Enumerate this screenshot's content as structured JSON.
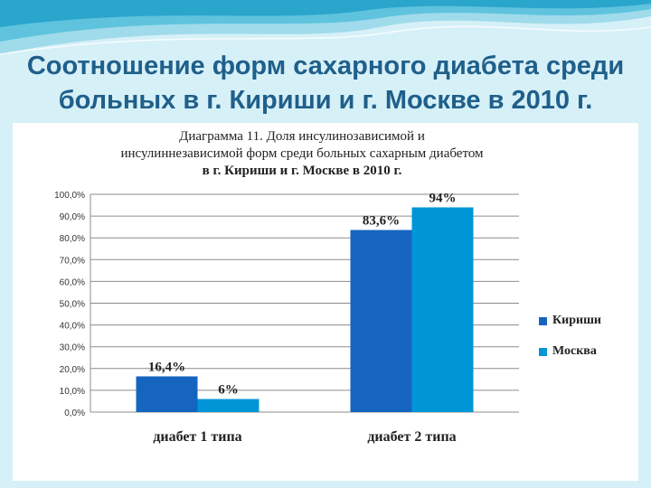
{
  "slide": {
    "title_line1": "Соотношение форм сахарного диабета среди",
    "title_line2": "больных в г. Кириши и г. Москве в 2010 г."
  },
  "colors": {
    "kirishi": "#1565c0",
    "moscow": "#0096d6",
    "title": "#1f5f8b"
  },
  "chart_data": {
    "type": "bar",
    "title_line1": "Диаграмма 11. Доля инсулинозависимой и",
    "title_line2": "инсулиннезависимой форм среди больных сахарным диабетом",
    "title_line3": "в г. Кириши и г. Москве в 2010 г.",
    "categories": [
      "диабет 1 типа",
      "диабет 2 типа"
    ],
    "series": [
      {
        "name": "Кириши",
        "values": [
          16.4,
          83.6
        ],
        "labels": [
          "16,4%",
          "83,6%"
        ]
      },
      {
        "name": "Москва",
        "values": [
          6,
          94
        ],
        "labels": [
          "6%",
          "94%"
        ]
      }
    ],
    "ylim": [
      0,
      100
    ],
    "yticks": [
      "0,0%",
      "10,0%",
      "20,0%",
      "30,0%",
      "40,0%",
      "50,0%",
      "60,0%",
      "70,0%",
      "80,0%",
      "90,0%",
      "100,0%"
    ],
    "grid": true,
    "legend": "right"
  }
}
